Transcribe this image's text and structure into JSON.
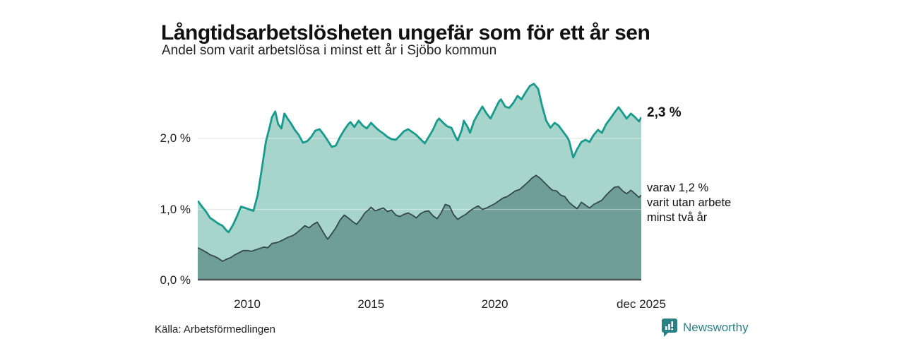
{
  "header": {
    "title": "Långtidsarbetslösheten ungefär som för ett år sen",
    "subtitle": "Andel som varit arbetslösa i minst ett år i Sjöbo kommun"
  },
  "annotations": {
    "series1_end_label": "2,3 %",
    "series2_end_lines": [
      "varav 1,2 %",
      "varit utan arbete",
      "minst två år"
    ]
  },
  "source": "Källa: Arbetsförmedlingen",
  "branding": {
    "name": "Newsworthy",
    "icon": "newsworthy-bubble-barchart-icon"
  },
  "colors": {
    "series1_line": "#189a8c",
    "series1_fill": "#a7d5cc",
    "series2_line": "#33494d",
    "series2_fill": "#6f9e99",
    "grid": "#d9d9d9",
    "grid_over_fill": "rgba(255,255,255,0.40)",
    "axis_baseline": "#4e5356",
    "brand": "#2a8185",
    "text": "#111111"
  },
  "chart_data": {
    "type": "area",
    "title": "Långtidsarbetslösheten ungefär som för ett år sen",
    "subtitle": "Andel som varit arbetslösa i minst ett år i Sjöbo kommun",
    "unit": "%",
    "x_domain": [
      2008.0,
      2025.92
    ],
    "ylim": [
      0,
      3.1
    ],
    "grid": true,
    "legend_position": "right-annotations",
    "y_ticks": [
      {
        "value": 0,
        "label": "0,0 %"
      },
      {
        "value": 1,
        "label": "1,0 %"
      },
      {
        "value": 2,
        "label": "2,0 %"
      }
    ],
    "x_ticks": [
      {
        "value": 2010,
        "label": "2010"
      },
      {
        "value": 2015,
        "label": "2015"
      },
      {
        "value": 2020,
        "label": "2020"
      },
      {
        "value": 2025.92,
        "label": "dec 2025"
      }
    ],
    "series": [
      {
        "name": "Andel som varit arbetslösa i minst ett år",
        "end_value": 2.3,
        "points": [
          [
            2008.0,
            1.12
          ],
          [
            2008.17,
            1.04
          ],
          [
            2008.33,
            0.97
          ],
          [
            2008.5,
            0.88
          ],
          [
            2008.67,
            0.84
          ],
          [
            2008.83,
            0.8
          ],
          [
            2009.0,
            0.77
          ],
          [
            2009.17,
            0.7
          ],
          [
            2009.25,
            0.68
          ],
          [
            2009.42,
            0.78
          ],
          [
            2009.58,
            0.9
          ],
          [
            2009.75,
            1.04
          ],
          [
            2009.92,
            1.02
          ],
          [
            2010.08,
            1.0
          ],
          [
            2010.25,
            0.98
          ],
          [
            2010.42,
            1.2
          ],
          [
            2010.58,
            1.55
          ],
          [
            2010.75,
            1.95
          ],
          [
            2010.92,
            2.18
          ],
          [
            2011.0,
            2.3
          ],
          [
            2011.13,
            2.38
          ],
          [
            2011.25,
            2.2
          ],
          [
            2011.38,
            2.14
          ],
          [
            2011.5,
            2.35
          ],
          [
            2011.63,
            2.28
          ],
          [
            2011.75,
            2.22
          ],
          [
            2011.92,
            2.12
          ],
          [
            2012.08,
            2.05
          ],
          [
            2012.25,
            1.94
          ],
          [
            2012.42,
            1.96
          ],
          [
            2012.58,
            2.02
          ],
          [
            2012.75,
            2.11
          ],
          [
            2012.92,
            2.13
          ],
          [
            2013.08,
            2.06
          ],
          [
            2013.25,
            1.97
          ],
          [
            2013.42,
            1.88
          ],
          [
            2013.58,
            1.9
          ],
          [
            2013.75,
            2.02
          ],
          [
            2013.92,
            2.12
          ],
          [
            2014.08,
            2.2
          ],
          [
            2014.17,
            2.23
          ],
          [
            2014.33,
            2.16
          ],
          [
            2014.5,
            2.25
          ],
          [
            2014.67,
            2.18
          ],
          [
            2014.83,
            2.14
          ],
          [
            2015.0,
            2.22
          ],
          [
            2015.17,
            2.16
          ],
          [
            2015.33,
            2.11
          ],
          [
            2015.5,
            2.07
          ],
          [
            2015.67,
            2.02
          ],
          [
            2015.83,
            1.99
          ],
          [
            2016.0,
            1.98
          ],
          [
            2016.17,
            2.04
          ],
          [
            2016.33,
            2.1
          ],
          [
            2016.5,
            2.13
          ],
          [
            2016.67,
            2.09
          ],
          [
            2016.83,
            2.05
          ],
          [
            2017.0,
            1.99
          ],
          [
            2017.17,
            1.93
          ],
          [
            2017.33,
            2.02
          ],
          [
            2017.5,
            2.12
          ],
          [
            2017.67,
            2.25
          ],
          [
            2017.75,
            2.28
          ],
          [
            2017.92,
            2.22
          ],
          [
            2018.08,
            2.17
          ],
          [
            2018.25,
            2.15
          ],
          [
            2018.42,
            2.02
          ],
          [
            2018.5,
            1.97
          ],
          [
            2018.67,
            2.12
          ],
          [
            2018.75,
            2.25
          ],
          [
            2018.92,
            2.15
          ],
          [
            2019.0,
            2.08
          ],
          [
            2019.17,
            2.25
          ],
          [
            2019.33,
            2.35
          ],
          [
            2019.5,
            2.45
          ],
          [
            2019.67,
            2.35
          ],
          [
            2019.83,
            2.28
          ],
          [
            2020.0,
            2.4
          ],
          [
            2020.17,
            2.52
          ],
          [
            2020.25,
            2.55
          ],
          [
            2020.42,
            2.45
          ],
          [
            2020.58,
            2.43
          ],
          [
            2020.75,
            2.5
          ],
          [
            2020.92,
            2.6
          ],
          [
            2021.08,
            2.55
          ],
          [
            2021.25,
            2.65
          ],
          [
            2021.42,
            2.74
          ],
          [
            2021.58,
            2.77
          ],
          [
            2021.75,
            2.7
          ],
          [
            2021.92,
            2.45
          ],
          [
            2022.08,
            2.25
          ],
          [
            2022.25,
            2.15
          ],
          [
            2022.42,
            2.22
          ],
          [
            2022.58,
            2.18
          ],
          [
            2022.75,
            2.1
          ],
          [
            2022.92,
            2.02
          ],
          [
            2023.0,
            1.97
          ],
          [
            2023.17,
            1.73
          ],
          [
            2023.33,
            1.85
          ],
          [
            2023.5,
            1.95
          ],
          [
            2023.67,
            1.98
          ],
          [
            2023.83,
            1.95
          ],
          [
            2024.0,
            2.05
          ],
          [
            2024.17,
            2.12
          ],
          [
            2024.33,
            2.08
          ],
          [
            2024.5,
            2.2
          ],
          [
            2024.67,
            2.28
          ],
          [
            2024.83,
            2.36
          ],
          [
            2025.0,
            2.44
          ],
          [
            2025.17,
            2.36
          ],
          [
            2025.33,
            2.28
          ],
          [
            2025.5,
            2.35
          ],
          [
            2025.67,
            2.3
          ],
          [
            2025.83,
            2.24
          ],
          [
            2025.92,
            2.3
          ]
        ]
      },
      {
        "name": "varav utan arbete minst två år",
        "end_value": 1.2,
        "points": [
          [
            2008.0,
            0.46
          ],
          [
            2008.17,
            0.43
          ],
          [
            2008.33,
            0.4
          ],
          [
            2008.5,
            0.36
          ],
          [
            2008.67,
            0.34
          ],
          [
            2008.83,
            0.31
          ],
          [
            2009.0,
            0.27
          ],
          [
            2009.17,
            0.3
          ],
          [
            2009.33,
            0.32
          ],
          [
            2009.5,
            0.36
          ],
          [
            2009.67,
            0.39
          ],
          [
            2009.83,
            0.42
          ],
          [
            2010.0,
            0.42
          ],
          [
            2010.17,
            0.41
          ],
          [
            2010.33,
            0.43
          ],
          [
            2010.5,
            0.45
          ],
          [
            2010.67,
            0.47
          ],
          [
            2010.83,
            0.46
          ],
          [
            2011.0,
            0.52
          ],
          [
            2011.17,
            0.53
          ],
          [
            2011.33,
            0.55
          ],
          [
            2011.5,
            0.58
          ],
          [
            2011.67,
            0.61
          ],
          [
            2011.83,
            0.63
          ],
          [
            2012.0,
            0.67
          ],
          [
            2012.17,
            0.72
          ],
          [
            2012.33,
            0.77
          ],
          [
            2012.5,
            0.74
          ],
          [
            2012.67,
            0.79
          ],
          [
            2012.83,
            0.82
          ],
          [
            2013.0,
            0.72
          ],
          [
            2013.17,
            0.62
          ],
          [
            2013.25,
            0.58
          ],
          [
            2013.42,
            0.66
          ],
          [
            2013.58,
            0.74
          ],
          [
            2013.75,
            0.85
          ],
          [
            2013.92,
            0.92
          ],
          [
            2014.08,
            0.88
          ],
          [
            2014.25,
            0.83
          ],
          [
            2014.42,
            0.79
          ],
          [
            2014.58,
            0.86
          ],
          [
            2014.75,
            0.95
          ],
          [
            2014.92,
            1.0
          ],
          [
            2015.0,
            1.03
          ],
          [
            2015.17,
            0.98
          ],
          [
            2015.33,
            1.0
          ],
          [
            2015.5,
            1.02
          ],
          [
            2015.67,
            0.97
          ],
          [
            2015.83,
            0.99
          ],
          [
            2016.0,
            0.92
          ],
          [
            2016.17,
            0.9
          ],
          [
            2016.33,
            0.93
          ],
          [
            2016.5,
            0.95
          ],
          [
            2016.67,
            0.92
          ],
          [
            2016.83,
            0.88
          ],
          [
            2017.0,
            0.94
          ],
          [
            2017.17,
            0.97
          ],
          [
            2017.33,
            0.98
          ],
          [
            2017.5,
            0.91
          ],
          [
            2017.67,
            0.87
          ],
          [
            2017.83,
            0.95
          ],
          [
            2018.0,
            1.07
          ],
          [
            2018.17,
            1.05
          ],
          [
            2018.33,
            0.93
          ],
          [
            2018.5,
            0.86
          ],
          [
            2018.67,
            0.9
          ],
          [
            2018.83,
            0.93
          ],
          [
            2019.0,
            0.98
          ],
          [
            2019.17,
            1.02
          ],
          [
            2019.33,
            1.05
          ],
          [
            2019.5,
            1.0
          ],
          [
            2019.67,
            1.02
          ],
          [
            2019.83,
            1.05
          ],
          [
            2020.0,
            1.08
          ],
          [
            2020.17,
            1.12
          ],
          [
            2020.33,
            1.16
          ],
          [
            2020.5,
            1.18
          ],
          [
            2020.67,
            1.22
          ],
          [
            2020.83,
            1.26
          ],
          [
            2021.0,
            1.28
          ],
          [
            2021.17,
            1.33
          ],
          [
            2021.33,
            1.38
          ],
          [
            2021.5,
            1.44
          ],
          [
            2021.67,
            1.48
          ],
          [
            2021.83,
            1.44
          ],
          [
            2022.0,
            1.38
          ],
          [
            2022.17,
            1.32
          ],
          [
            2022.33,
            1.27
          ],
          [
            2022.5,
            1.26
          ],
          [
            2022.67,
            1.2
          ],
          [
            2022.83,
            1.18
          ],
          [
            2023.0,
            1.1
          ],
          [
            2023.17,
            1.05
          ],
          [
            2023.33,
            1.01
          ],
          [
            2023.5,
            1.1
          ],
          [
            2023.67,
            1.06
          ],
          [
            2023.83,
            1.02
          ],
          [
            2024.0,
            1.07
          ],
          [
            2024.17,
            1.1
          ],
          [
            2024.33,
            1.13
          ],
          [
            2024.5,
            1.2
          ],
          [
            2024.67,
            1.26
          ],
          [
            2024.83,
            1.31
          ],
          [
            2025.0,
            1.32
          ],
          [
            2025.17,
            1.26
          ],
          [
            2025.33,
            1.22
          ],
          [
            2025.5,
            1.27
          ],
          [
            2025.67,
            1.22
          ],
          [
            2025.83,
            1.17
          ],
          [
            2025.92,
            1.2
          ]
        ]
      }
    ]
  }
}
